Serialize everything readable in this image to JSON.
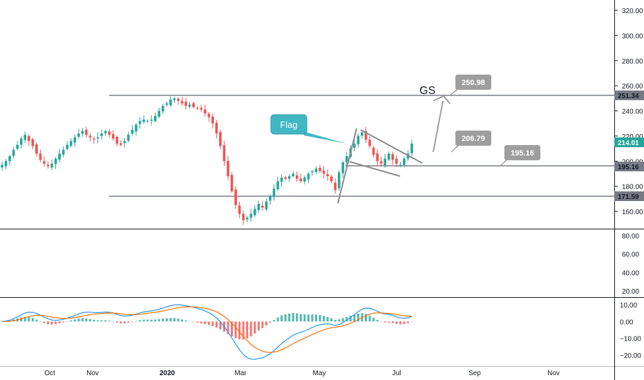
{
  "colors": {
    "up": "#26a69a",
    "down": "#ef5350",
    "hline": "#787b86",
    "drawing": "#9e9e9e",
    "callout": "#3fb8c4",
    "price_tag_current": "#26a69a",
    "macd": "#2196f3",
    "signal": "#ff6d00"
  },
  "symbol": "GS",
  "callout": {
    "text": "Flag"
  },
  "target_labels": {
    "a": "250.98",
    "b": "206.79",
    "c": "195.16"
  },
  "price_tags": {
    "top": "251.34",
    "current": "214.01",
    "mid": "195.16",
    "low": "171.59"
  },
  "x_axis": {
    "labels": [
      "Oct",
      "Nov",
      "2020",
      "Mar",
      "May",
      "Jul",
      "Sep",
      "Nov"
    ]
  },
  "chart_data": [
    {
      "type": "candlestick",
      "panel": "price",
      "y_ticks": [
        "320.00",
        "300.00",
        "280.00",
        "260.00",
        "240.00",
        "220.00",
        "200.00",
        "180.00",
        "160.00"
      ],
      "ylim": [
        145,
        328
      ],
      "series_closes": [
        197,
        200,
        204,
        209,
        213,
        218,
        221,
        216,
        212,
        206,
        201,
        198,
        196,
        198,
        202,
        206,
        209,
        213,
        216,
        219,
        222,
        224,
        221,
        219,
        217,
        219,
        222,
        224,
        221,
        218,
        214,
        213,
        216,
        221,
        225,
        229,
        232,
        233,
        232,
        233,
        236,
        240,
        244,
        246,
        249,
        250,
        248,
        246,
        244,
        245,
        243,
        242,
        241,
        238,
        235,
        230,
        222,
        212,
        200,
        188,
        176,
        165,
        158,
        153,
        155,
        158,
        162,
        166,
        163,
        168,
        172,
        178,
        184,
        187,
        186,
        188,
        190,
        186,
        184,
        187,
        190,
        192,
        194,
        192,
        190,
        188,
        184,
        177,
        191,
        199,
        204,
        210,
        214,
        220,
        223,
        217,
        212,
        205,
        200,
        198,
        202,
        206,
        201,
        198,
        197,
        202,
        206,
        214
      ],
      "horizontal_levels": [
        251.34,
        195.16,
        171.59
      ],
      "targets": [
        250.98,
        206.79,
        195.16
      ],
      "annotations": [
        "GS",
        "Flag"
      ]
    },
    {
      "type": "line",
      "panel": "indicator",
      "y_ticks": [
        "80.00",
        "60.00",
        "40.00",
        "20.00"
      ],
      "ylim": [
        10,
        90
      ],
      "series": []
    },
    {
      "type": "macd",
      "panel": "macd",
      "y_ticks": [
        "10.00",
        "0.00",
        "−10.00",
        "−20.00"
      ],
      "ylim": [
        -25,
        14
      ],
      "macd_range": [
        -22.5,
        10
      ],
      "series": [
        {
          "name": "",
          "kind": "histogram"
        },
        {
          "name": "",
          "kind": "line"
        }
      ]
    }
  ]
}
